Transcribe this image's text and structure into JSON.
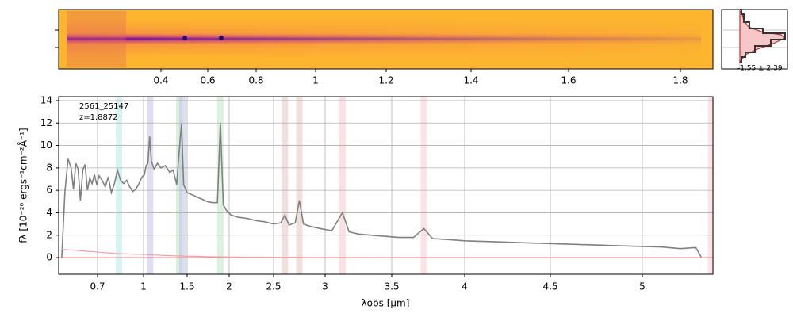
{
  "chart_data": {
    "type": "line",
    "annotations": [
      "2561_25147",
      "z=1.8872"
    ],
    "xlabel": "λobs [μm]",
    "ylabel": "fλ [10⁻²⁰ ergs⁻¹cm⁻²Å⁻¹]",
    "xlim": [
      0.45,
      5.37
    ],
    "xticks": [
      0.7,
      1.0,
      1.5,
      2.0,
      2.5,
      3.0,
      3.5,
      4.0,
      4.5,
      5.0
    ],
    "ylim": [
      -1.48,
      14.35
    ],
    "yticks": [
      0,
      2,
      4,
      6,
      8,
      10,
      12,
      14
    ],
    "grid": true,
    "x": [
      0.47,
      0.49,
      0.51,
      0.53,
      0.545,
      0.56,
      0.575,
      0.59,
      0.605,
      0.62,
      0.635,
      0.65,
      0.665,
      0.68,
      0.695,
      0.71,
      0.73,
      0.75,
      0.77,
      0.79,
      0.81,
      0.83,
      0.85,
      0.87,
      0.89,
      0.91,
      0.93,
      0.95,
      0.97,
      0.99,
      1.01,
      1.03,
      1.05,
      1.07,
      1.09,
      1.12,
      1.16,
      1.2,
      1.25,
      1.3,
      1.34,
      1.38,
      1.41,
      1.435,
      1.46,
      1.5,
      1.56,
      1.62,
      1.68,
      1.74,
      1.8,
      1.86,
      1.895,
      1.93,
      1.97,
      2.02,
      2.1,
      2.2,
      2.3,
      2.4,
      2.5,
      2.57,
      2.61,
      2.65,
      2.71,
      2.75,
      2.79,
      2.85,
      2.95,
      3.05,
      3.13,
      3.18,
      3.25,
      3.35,
      3.45,
      3.55,
      3.65,
      3.72,
      3.78,
      3.9,
      4.0,
      4.2,
      4.4,
      4.6,
      4.8,
      5.0,
      5.1,
      5.2,
      5.28,
      5.31
    ],
    "series": [
      {
        "color": "#808080",
        "values": [
          0,
          5.8,
          8.8,
          8.0,
          6.1,
          8.4,
          7.9,
          5.1,
          7.8,
          8.3,
          6.0,
          7.1,
          6.6,
          7.4,
          6.5,
          7.3,
          6.9,
          6.3,
          7.2,
          5.8,
          6.6,
          7.8,
          6.9,
          6.6,
          6.9,
          6.3,
          5.9,
          6.1,
          6.6,
          7.2,
          7.4,
          8.2,
          8.4,
          10.8,
          8.6,
          7.9,
          8.4,
          8.0,
          8.2,
          7.6,
          7.8,
          6.5,
          9.6,
          11.9,
          6.5,
          5.8,
          5.6,
          5.4,
          5.2,
          5.0,
          4.9,
          4.9,
          12.0,
          4.7,
          4.2,
          3.8,
          3.6,
          3.5,
          3.3,
          3.2,
          3.0,
          3.1,
          3.8,
          2.9,
          3.1,
          5.1,
          3.0,
          2.8,
          2.6,
          2.4,
          4.0,
          2.3,
          2.1,
          2.0,
          1.9,
          1.8,
          1.8,
          2.6,
          1.7,
          1.6,
          1.5,
          1.4,
          1.3,
          1.2,
          1.1,
          1.0,
          0.95,
          0.8,
          0.9,
          0
        ]
      },
      {
        "color": "#f4a0a8",
        "values": [
          0.75,
          0.72,
          0.7,
          0.68,
          0.66,
          0.65,
          0.63,
          0.62,
          0.6,
          0.58,
          0.56,
          0.55,
          0.54,
          0.52,
          0.5,
          0.48,
          0.46,
          0.44,
          0.42,
          0.4,
          0.38,
          0.36,
          0.35,
          0.34,
          0.33,
          0.32,
          0.31,
          0.3,
          0.3,
          0.29,
          0.28,
          0.27,
          0.26,
          0.25,
          0.24,
          0.23,
          0.22,
          0.2,
          0.19,
          0.18,
          0.17,
          0.16,
          0.15,
          0.15,
          0.14,
          0.13,
          0.12,
          0.11,
          0.1,
          0.09,
          0.08,
          0.07,
          0.07,
          0.06,
          0.06,
          0.05,
          0.05,
          0.04,
          0.04,
          0.04,
          0.03,
          0.03,
          0.03,
          0.03,
          0.03,
          0.03,
          0.02,
          0.02,
          0.02,
          0.02,
          0.02,
          0.02,
          0.02,
          0.02,
          0.02,
          0.02,
          0.02,
          0.02,
          0.02,
          0.02,
          0.02,
          0.02,
          0.02,
          0.02,
          0.02,
          0.02,
          0.02,
          0.02,
          0.02,
          0.02
        ]
      }
    ],
    "bands": [
      {
        "x": 0.84,
        "color": "#b8e8ea"
      },
      {
        "x": 1.076,
        "color": "#c8c0e8"
      },
      {
        "x": 1.41,
        "color": "#bfe0bf"
      },
      {
        "x": 1.445,
        "color": "#b8c8e8"
      },
      {
        "x": 1.895,
        "color": "#bfe6c4"
      },
      {
        "x": 2.61,
        "color": "#e6c4c0"
      },
      {
        "x": 2.75,
        "color": "#e6c4c0"
      },
      {
        "x": 3.13,
        "color": "#f4c8cc"
      },
      {
        "x": 3.72,
        "color": "#f8ccd4"
      },
      {
        "x": 5.36,
        "color": "#f8ccd4"
      }
    ],
    "top_xticks": [
      0.4,
      0.6,
      0.8,
      1.0,
      1.2,
      1.4,
      1.6,
      1.8
    ],
    "side_label": "-1.55 ± 2.39"
  }
}
